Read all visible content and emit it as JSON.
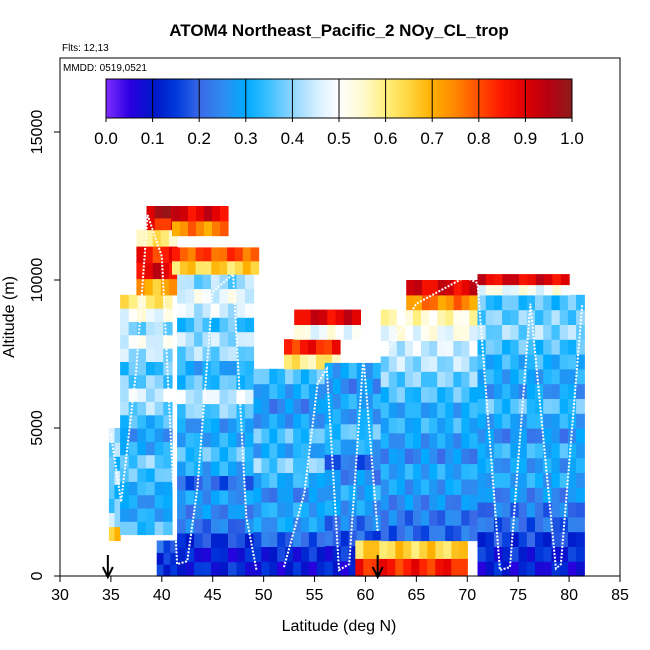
{
  "chart_data": {
    "type": "heatmap",
    "title": "ATOM4 Northeast_Pacific_2 NOy_CL_trop",
    "flights_label": "Flts: 12,13",
    "date_label": "MMDD: 0519,0521",
    "xlabel": "Latitude (deg N)",
    "ylabel": "Altitude (m)",
    "xlim": [
      30,
      85
    ],
    "ylim": [
      0,
      17500
    ],
    "x_ticks": [
      "30",
      "35",
      "40",
      "45",
      "50",
      "55",
      "60",
      "65",
      "70",
      "75",
      "80",
      "85"
    ],
    "y_ticks": [
      "0",
      "5000",
      "10000",
      "15000"
    ],
    "colorbar": {
      "min": 0.0,
      "max": 1.0,
      "tick_labels": [
        "0.0",
        "0.1",
        "0.2",
        "0.3",
        "0.4",
        "0.5",
        "0.6",
        "0.7",
        "0.8",
        "0.9",
        "1.0"
      ],
      "colors": [
        "#7b2bff",
        "#2a00e0",
        "#0016c8",
        "#003adc",
        "#3a6ae8",
        "#2f8cf0",
        "#00aaff",
        "#3fc0ff",
        "#8fd6ff",
        "#d2eeff",
        "#ffffff",
        "#fffad0",
        "#fff080",
        "#ffd640",
        "#ffb000",
        "#ff8800",
        "#ff5000",
        "#ff1800",
        "#e00000",
        "#b80012",
        "#901a1a"
      ]
    },
    "arrows_latitude": [
      34.7,
      61.2
    ],
    "columns": [
      {
        "lat": [
          34.8,
          35.9
        ],
        "alt": [
          1200,
          5000
        ],
        "values": [
          0.65,
          0.45,
          0.35,
          0.35,
          0.4,
          0.35,
          0.4,
          0.42
        ]
      },
      {
        "lat": [
          35.9,
          41.0
        ],
        "alt": [
          1400,
          9500
        ],
        "values": [
          0.35,
          0.3,
          0.28,
          0.32,
          0.35,
          0.38,
          0.3,
          0.28,
          0.33,
          0.4,
          0.45,
          0.38,
          0.35,
          0.42,
          0.48,
          0.4,
          0.5,
          0.6
        ]
      },
      {
        "lat": [
          37.5,
          41.5
        ],
        "alt": [
          9500,
          11700
        ],
        "values": [
          0.7,
          0.9,
          0.85,
          0.6
        ]
      },
      {
        "lat": [
          38.5,
          42.5
        ],
        "alt": [
          11700,
          12500
        ],
        "values": [
          0.85,
          0.95
        ]
      },
      {
        "lat": [
          39.5,
          41.5
        ],
        "alt": [
          0,
          1200
        ],
        "values": [
          0.15,
          0.12,
          0.2
        ]
      },
      {
        "lat": [
          41.5,
          49.0
        ],
        "alt": [
          0,
          10200
        ],
        "values": [
          0.12,
          0.1,
          0.15,
          0.22,
          0.25,
          0.28,
          0.2,
          0.3,
          0.35,
          0.3,
          0.28,
          0.38,
          0.45,
          0.35,
          0.3,
          0.4,
          0.42,
          0.35,
          0.45,
          0.48,
          0.4
        ]
      },
      {
        "lat": [
          41.0,
          46.5
        ],
        "alt": [
          11500,
          12500
        ],
        "values": [
          0.75,
          0.9
        ]
      },
      {
        "lat": [
          41.0,
          49.5
        ],
        "alt": [
          10200,
          11100
        ],
        "values": [
          0.65,
          0.8
        ]
      },
      {
        "lat": [
          49.0,
          56.0
        ],
        "alt": [
          0,
          7000
        ],
        "values": [
          0.1,
          0.12,
          0.2,
          0.28,
          0.3,
          0.25,
          0.32,
          0.38,
          0.3,
          0.35,
          0.28,
          0.25,
          0.3,
          0.35
        ]
      },
      {
        "lat": [
          52.0,
          57.5
        ],
        "alt": [
          7000,
          8000
        ],
        "values": [
          0.6,
          0.85
        ]
      },
      {
        "lat": [
          53.0,
          59.5
        ],
        "alt": [
          8000,
          9000
        ],
        "values": [
          0.5,
          0.9
        ]
      },
      {
        "lat": [
          56.0,
          61.5
        ],
        "alt": [
          0,
          7200
        ],
        "values": [
          0.1,
          0.12,
          0.18,
          0.22,
          0.28,
          0.3,
          0.25,
          0.2,
          0.3,
          0.35,
          0.28,
          0.3,
          0.25,
          0.3
        ]
      },
      {
        "lat": [
          59.0,
          70.0
        ],
        "alt": [
          0,
          1200
        ],
        "values": [
          0.85,
          0.65
        ]
      },
      {
        "lat": [
          61.5,
          71.0
        ],
        "alt": [
          1200,
          9000
        ],
        "values": [
          0.2,
          0.22,
          0.25,
          0.28,
          0.3,
          0.25,
          0.28,
          0.32,
          0.3,
          0.35,
          0.38,
          0.42,
          0.45,
          0.5,
          0.55
        ]
      },
      {
        "lat": [
          64.0,
          71.0
        ],
        "alt": [
          9000,
          10000
        ],
        "values": [
          0.75,
          0.9
        ]
      },
      {
        "lat": [
          71.0,
          81.5
        ],
        "alt": [
          0,
          9500
        ],
        "values": [
          0.1,
          0.12,
          0.15,
          0.2,
          0.22,
          0.25,
          0.3,
          0.28,
          0.32,
          0.25,
          0.3,
          0.35,
          0.28,
          0.3,
          0.32,
          0.35,
          0.4,
          0.38,
          0.35
        ]
      },
      {
        "lat": [
          71.0,
          80.0
        ],
        "alt": [
          9500,
          10200
        ],
        "values": [
          0.5,
          0.9
        ]
      }
    ],
    "flight_tracks": [
      [
        [
          35.0,
          4800
        ],
        [
          36.0,
          2500
        ],
        [
          37.5,
          7000
        ],
        [
          38.6,
          12200
        ],
        [
          40.0,
          10800
        ],
        [
          41.5,
          400
        ],
        [
          42.5,
          500
        ],
        [
          43.5,
          3000
        ],
        [
          45.0,
          9600
        ],
        [
          47.0,
          10200
        ],
        [
          48.3,
          2000
        ],
        [
          49.3,
          200
        ]
      ],
      [
        [
          52.0,
          300
        ],
        [
          54.0,
          2800
        ],
        [
          55.3,
          6500
        ],
        [
          56.2,
          7000
        ],
        [
          57.4,
          200
        ],
        [
          58.4,
          400
        ],
        [
          59.8,
          7400
        ],
        [
          61.2,
          1500
        ]
      ],
      [
        [
          62.0,
          7500
        ],
        [
          65.0,
          9200
        ],
        [
          69.8,
          10100
        ],
        [
          71.0,
          9900
        ],
        [
          73.2,
          200
        ],
        [
          74.2,
          300
        ],
        [
          76.2,
          9200
        ],
        [
          78.7,
          250
        ],
        [
          79.2,
          400
        ],
        [
          81.3,
          9200
        ]
      ]
    ]
  }
}
